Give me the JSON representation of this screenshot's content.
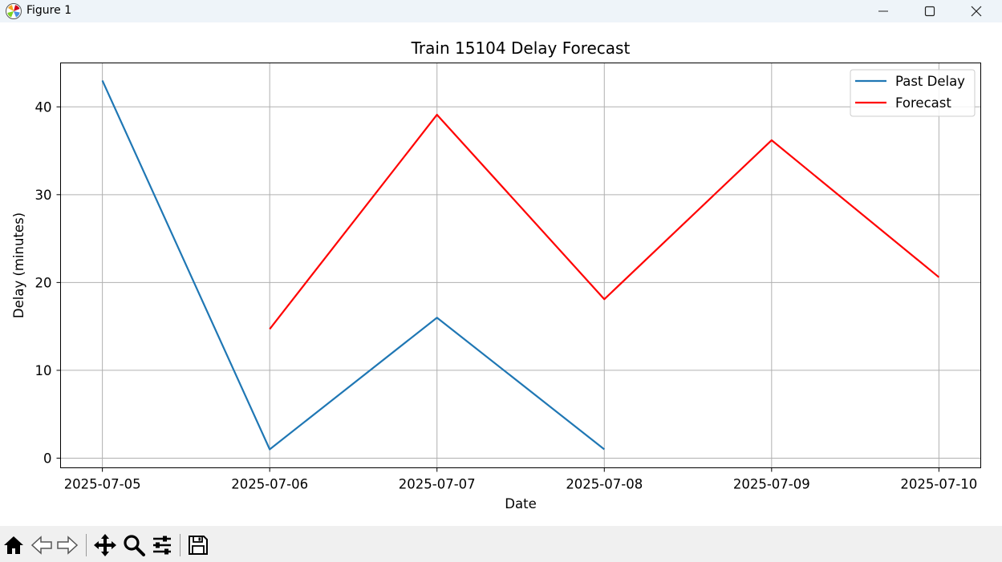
{
  "window": {
    "title": "Figure 1"
  },
  "toolbar": {
    "buttons": [
      {
        "icon": "home-icon"
      },
      {
        "icon": "back-arrow-icon"
      },
      {
        "icon": "forward-arrow-icon"
      },
      {
        "icon": "pan-icon"
      },
      {
        "icon": "zoom-icon"
      },
      {
        "icon": "configure-subplots-icon"
      },
      {
        "icon": "save-icon"
      }
    ]
  },
  "chart_data": {
    "type": "line",
    "title": "Train 15104 Delay Forecast",
    "xlabel": "Date",
    "ylabel": "Delay (minutes)",
    "x_ticks": [
      "2025-07-05",
      "2025-07-06",
      "2025-07-07",
      "2025-07-08",
      "2025-07-09",
      "2025-07-10"
    ],
    "y_ticks": [
      "0",
      "10",
      "20",
      "30",
      "40"
    ],
    "xlim": [
      "2025-07-04T18:00",
      "2025-07-10T06:00"
    ],
    "ylim": [
      -1.1,
      45
    ],
    "grid": true,
    "legend_position": "top-right",
    "series": [
      {
        "name": "Past Delay",
        "color": "#1f77b4",
        "x": [
          "2025-07-05",
          "2025-07-06",
          "2025-07-07",
          "2025-07-08"
        ],
        "y": [
          43,
          1,
          16,
          1
        ]
      },
      {
        "name": "Forecast",
        "color": "#ff0000",
        "x": [
          "2025-07-06",
          "2025-07-07",
          "2025-07-08",
          "2025-07-09",
          "2025-07-10"
        ],
        "y": [
          14.7,
          39.1,
          18.1,
          36.2,
          20.6
        ]
      }
    ]
  }
}
